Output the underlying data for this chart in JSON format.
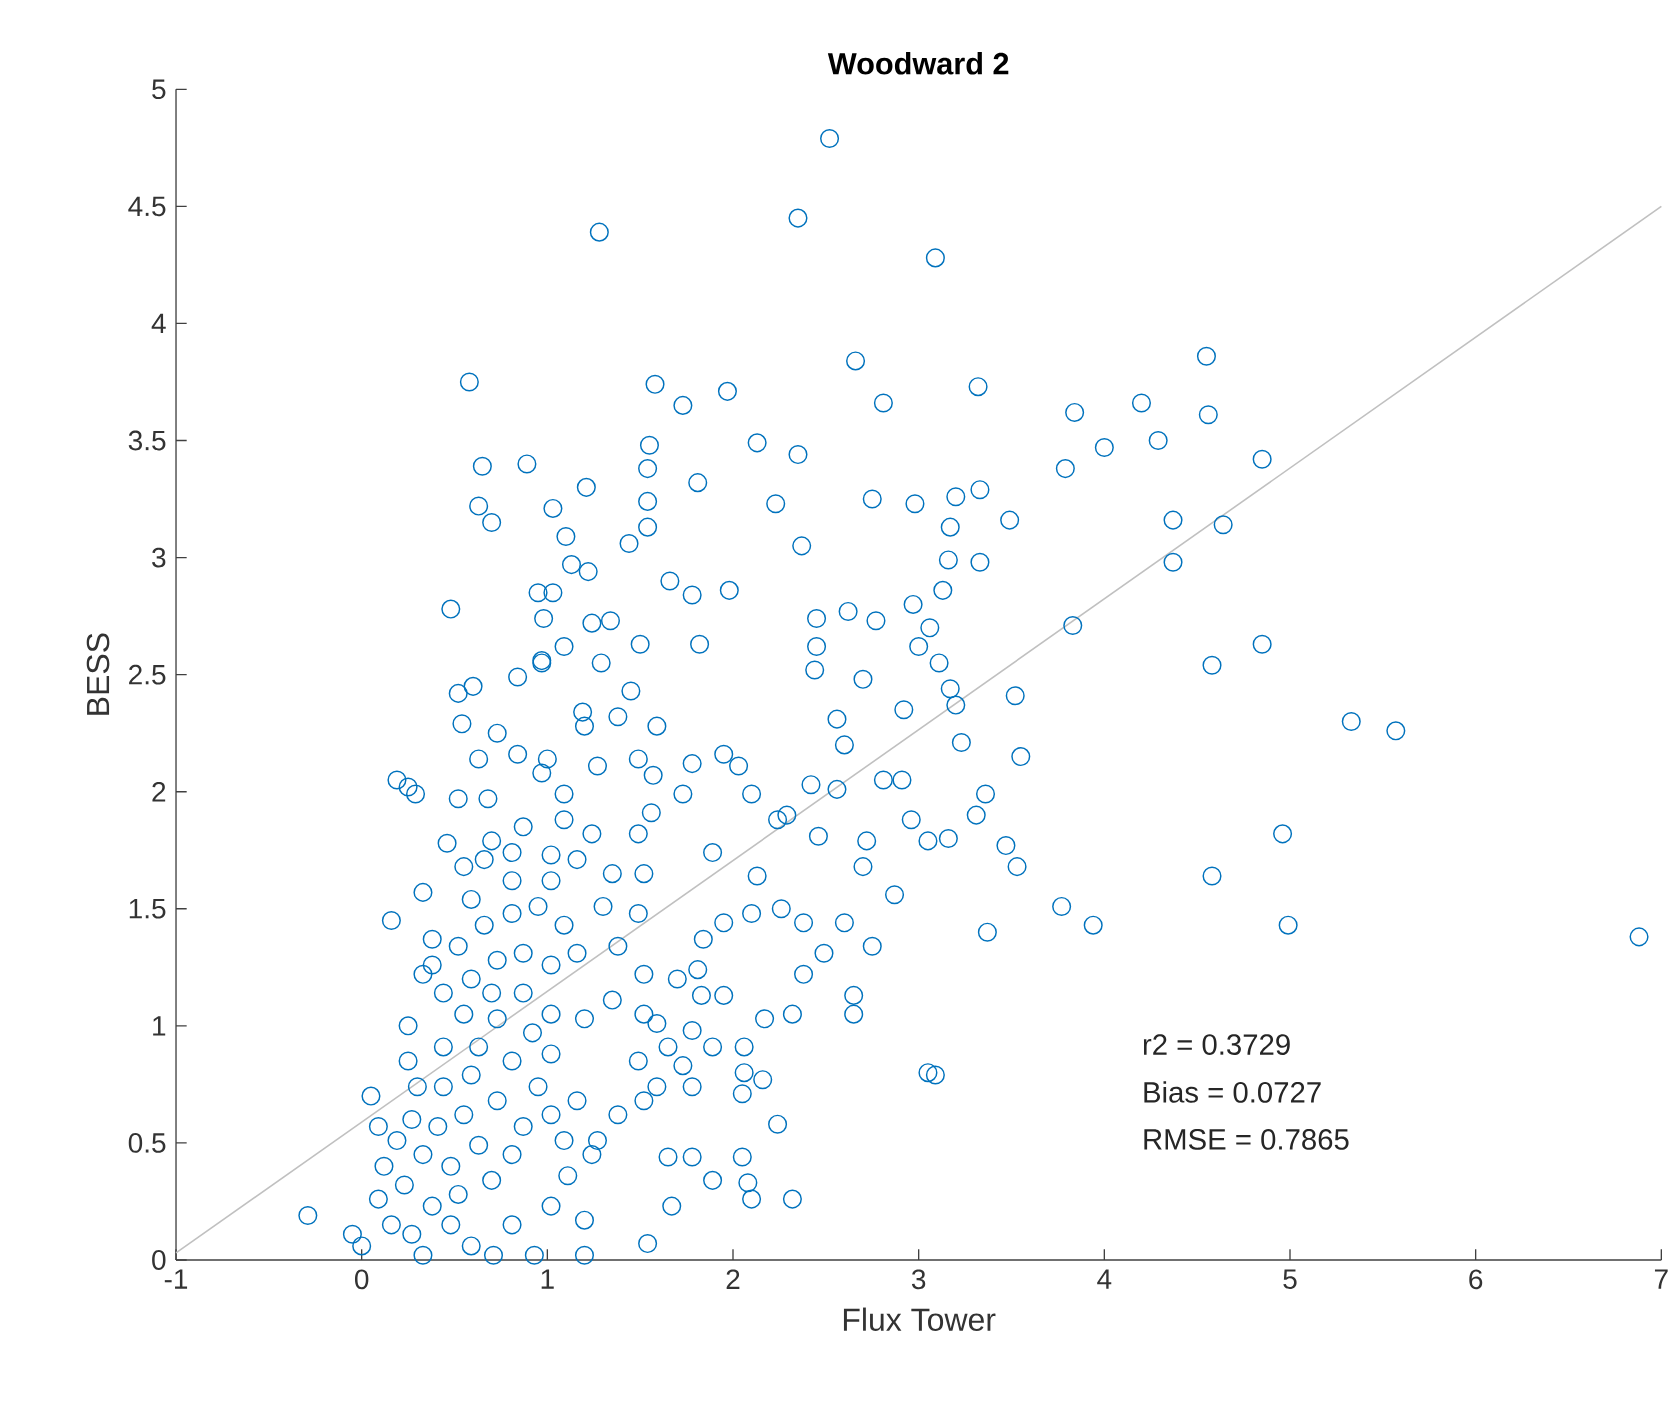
{
  "chart_data": {
    "type": "scatter",
    "title": "Woodward 2",
    "xlabel": "Flux Tower",
    "ylabel": "BESS",
    "xlim": [
      -1,
      7
    ],
    "xticks": [
      -1,
      0,
      1,
      2,
      3,
      4,
      5,
      6,
      7
    ],
    "ylim": [
      0,
      5
    ],
    "yticks": [
      0,
      0.5,
      1,
      1.5,
      2,
      2.5,
      3,
      3.5,
      4,
      4.5,
      5
    ],
    "annotations": [
      "r2 = 0.3729",
      "Bias = 0.0727",
      "RMSE = 0.7865"
    ],
    "series": [
      {
        "color": "#0072bd",
        "marker": "circle",
        "x": [
          2.52,
          2.35,
          1.28,
          3.09,
          0.58,
          1.58,
          1.73,
          1.97,
          2.66,
          2.81,
          3.32,
          4.55,
          4.85,
          4.56,
          4.64,
          4.37,
          4.37,
          3.83,
          4.58,
          4.85,
          4.2,
          3.84,
          4.0,
          4.29,
          3.79,
          3.49,
          3.33,
          3.2,
          3.17,
          3.16,
          3.33,
          3.13,
          3.06,
          3.11,
          3.17,
          3.2,
          3.52,
          3.23,
          3.55,
          3.36,
          3.31,
          3.16,
          3.47,
          3.53,
          3.77,
          3.94,
          3.37,
          5.33,
          5.57,
          4.96,
          4.58,
          4.99,
          6.88,
          3.09,
          0.65,
          0.89,
          1.55,
          1.54,
          2.13,
          2.35,
          1.81,
          1.21,
          0.63,
          0.7,
          1.03,
          1.54,
          1.54,
          1.44,
          1.1,
          2.23,
          2.75,
          2.98,
          2.37,
          1.13,
          1.22,
          1.66,
          1.78,
          1.98,
          0.95,
          1.03,
          0.48,
          0.98,
          1.24,
          1.34,
          1.5,
          1.82,
          2.45,
          2.62,
          2.77,
          2.97,
          1.09,
          0.97,
          1.29,
          2.45,
          3.0,
          -0.29,
          0.05,
          0.16,
          0.33,
          0.19,
          0.25,
          0.29,
          0.52,
          0.68,
          0.52,
          0.6,
          0.54,
          0.84,
          0.97,
          0.46,
          0.55,
          0.7,
          0.81,
          0.25,
          0.33,
          -0.05,
          0.0,
          0.33,
          0.71,
          0.93,
          1.2,
          1.54,
          1.65,
          1.78,
          1.89,
          2.05,
          2.1,
          1.67,
          2.24,
          1.2,
          1.02,
          0.81,
          0.59,
          1.24,
          1.11,
          1.78,
          2.06,
          2.16,
          2.17,
          2.32,
          2.65,
          2.65,
          3.05,
          2.38,
          2.49,
          2.38,
          2.75,
          2.6,
          2.87,
          2.7,
          2.72,
          2.96,
          3.05,
          2.81,
          2.91,
          2.56,
          2.46,
          2.42,
          2.24,
          2.29,
          2.56,
          2.6,
          2.92,
          2.7,
          2.44,
          2.13,
          2.1,
          2.26,
          1.95,
          1.84,
          1.81,
          1.95,
          1.83,
          1.7,
          1.59,
          1.89,
          2.06,
          2.05,
          1.73,
          1.59,
          1.52,
          1.38,
          1.27,
          1.16,
          1.89,
          2.03,
          1.95,
          1.78,
          2.1,
          1.73,
          1.57,
          1.56,
          1.49,
          1.49,
          1.59,
          1.45,
          1.38,
          1.19,
          1.2,
          1.0,
          0.97,
          0.84,
          0.73,
          1.27,
          1.09,
          1.24,
          1.16,
          1.02,
          1.35,
          1.52,
          1.49,
          1.3,
          1.38,
          1.52,
          1.35,
          1.2,
          1.52,
          1.65,
          1.78,
          1.49,
          2.32,
          2.08,
          0.09,
          0.12,
          0.19,
          0.27,
          0.33,
          0.41,
          0.48,
          0.55,
          0.63,
          0.23,
          0.09,
          0.38,
          0.52,
          0.7,
          0.81,
          0.87,
          0.73,
          0.59,
          0.44,
          0.3,
          0.25,
          0.44,
          0.63,
          0.81,
          0.95,
          1.02,
          0.92,
          0.73,
          0.55,
          1.02,
          1.09,
          0.27,
          0.16,
          0.48,
          0.38,
          0.52,
          0.66,
          0.81,
          0.95,
          1.09,
          1.16,
          1.02,
          0.87,
          0.73,
          0.59,
          0.44,
          0.7,
          0.87,
          1.02,
          0.38,
          0.59,
          0.81,
          1.02,
          0.66,
          0.87,
          1.09,
          0.63
        ],
        "values": [
          4.79,
          4.45,
          4.39,
          4.28,
          3.75,
          3.74,
          3.65,
          3.71,
          3.84,
          3.66,
          3.73,
          3.86,
          3.42,
          3.61,
          3.14,
          3.16,
          2.98,
          2.71,
          2.54,
          2.63,
          3.66,
          3.62,
          3.47,
          3.5,
          3.38,
          3.16,
          3.29,
          3.26,
          3.13,
          2.99,
          2.98,
          2.86,
          2.7,
          2.55,
          2.44,
          2.37,
          2.41,
          2.21,
          2.15,
          1.99,
          1.9,
          1.8,
          1.77,
          1.68,
          1.51,
          1.43,
          1.4,
          2.3,
          2.26,
          1.82,
          1.64,
          1.43,
          1.38,
          0.79,
          3.39,
          3.4,
          3.48,
          3.38,
          3.49,
          3.44,
          3.32,
          3.3,
          3.22,
          3.15,
          3.21,
          3.24,
          3.13,
          3.06,
          3.09,
          3.23,
          3.25,
          3.23,
          3.05,
          2.97,
          2.94,
          2.9,
          2.84,
          2.86,
          2.85,
          2.85,
          2.78,
          2.74,
          2.72,
          2.73,
          2.63,
          2.63,
          2.74,
          2.77,
          2.73,
          2.8,
          2.62,
          2.56,
          2.55,
          2.62,
          2.62,
          0.19,
          0.7,
          1.45,
          1.57,
          2.05,
          2.02,
          1.99,
          1.97,
          1.97,
          2.42,
          2.45,
          2.29,
          2.49,
          2.55,
          1.78,
          1.68,
          1.79,
          1.74,
          1.0,
          1.22,
          0.11,
          0.06,
          0.02,
          0.02,
          0.02,
          0.02,
          0.07,
          0.44,
          0.44,
          0.34,
          0.44,
          0.26,
          0.23,
          0.58,
          0.17,
          0.23,
          0.15,
          0.06,
          0.45,
          0.36,
          0.74,
          0.8,
          0.77,
          1.03,
          1.05,
          1.13,
          1.05,
          0.8,
          1.22,
          1.31,
          1.44,
          1.34,
          1.44,
          1.56,
          1.68,
          1.79,
          1.88,
          1.79,
          2.05,
          2.05,
          2.01,
          1.81,
          2.03,
          1.88,
          1.9,
          2.31,
          2.2,
          2.35,
          2.48,
          2.52,
          1.64,
          1.48,
          1.5,
          1.44,
          1.37,
          1.24,
          1.13,
          1.13,
          1.2,
          1.01,
          0.91,
          0.91,
          0.71,
          0.83,
          0.74,
          0.68,
          0.62,
          0.51,
          0.68,
          1.74,
          2.11,
          2.16,
          2.12,
          1.99,
          1.99,
          2.07,
          1.91,
          1.82,
          2.14,
          2.28,
          2.43,
          2.32,
          2.34,
          2.28,
          2.14,
          2.08,
          2.16,
          2.25,
          2.11,
          1.88,
          1.82,
          1.71,
          1.73,
          1.65,
          1.65,
          1.48,
          1.51,
          1.34,
          1.22,
          1.11,
          1.03,
          1.05,
          0.91,
          0.98,
          0.85,
          0.26,
          0.33,
          0.57,
          0.4,
          0.51,
          0.6,
          0.45,
          0.57,
          0.4,
          0.62,
          0.49,
          0.32,
          0.26,
          0.23,
          0.28,
          0.34,
          0.45,
          0.57,
          0.68,
          0.79,
          0.74,
          0.74,
          0.85,
          0.91,
          0.91,
          0.85,
          0.74,
          0.88,
          0.97,
          1.03,
          1.05,
          0.62,
          0.51,
          0.11,
          0.15,
          0.15,
          1.26,
          1.34,
          1.43,
          1.48,
          1.51,
          1.43,
          1.31,
          1.26,
          1.31,
          1.28,
          1.2,
          1.14,
          1.14,
          1.14,
          1.05,
          1.37,
          1.54,
          1.62,
          1.62,
          1.71,
          1.85,
          1.99,
          2.14
        ]
      },
      {
        "type": "line",
        "color": "#c0c0c0",
        "marker": "none",
        "x": [
          -1,
          7
        ],
        "values": [
          0.03,
          4.5
        ]
      }
    ]
  }
}
